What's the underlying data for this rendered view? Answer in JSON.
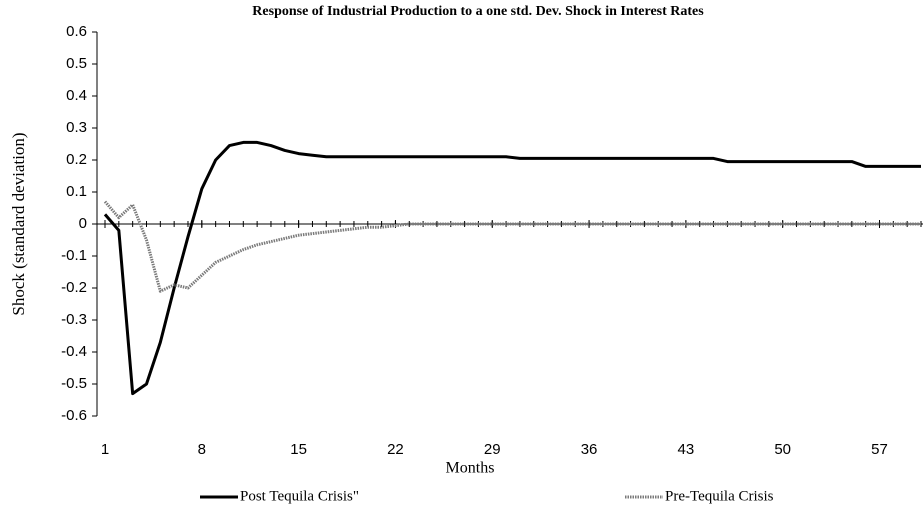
{
  "chart_data": {
    "type": "line",
    "title": "Response of Industrial Production to a one std. Dev. Shock in Interest Rates",
    "x_label": "Months",
    "y_label": "Shock (standard deviation)",
    "x": [
      1,
      2,
      3,
      4,
      5,
      6,
      7,
      8,
      9,
      10,
      11,
      12,
      13,
      14,
      15,
      16,
      17,
      18,
      19,
      20,
      21,
      22,
      23,
      24,
      25,
      26,
      27,
      28,
      29,
      30,
      31,
      32,
      33,
      34,
      35,
      36,
      37,
      38,
      39,
      40,
      41,
      42,
      43,
      44,
      45,
      46,
      47,
      48,
      49,
      50,
      51,
      52,
      53,
      54,
      55,
      56,
      57,
      58,
      59,
      60
    ],
    "xlim": [
      1,
      60
    ],
    "xticks": [
      1,
      8,
      15,
      22,
      29,
      36,
      43,
      50,
      57
    ],
    "ylim": [
      -0.6,
      0.6
    ],
    "yticks": [
      -0.6,
      -0.5,
      -0.4,
      -0.3,
      -0.2,
      -0.1,
      0,
      0.1,
      0.2,
      0.3,
      0.4,
      0.5,
      0.6
    ],
    "legend": "bottom",
    "series": [
      {
        "name": "Post Tequila Crisis\"",
        "color": "#000000",
        "values": [
          0.03,
          -0.02,
          -0.53,
          -0.5,
          -0.37,
          -0.2,
          -0.04,
          0.11,
          0.2,
          0.245,
          0.255,
          0.255,
          0.245,
          0.23,
          0.22,
          0.215,
          0.21,
          0.21,
          0.21,
          0.21,
          0.21,
          0.21,
          0.21,
          0.21,
          0.21,
          0.21,
          0.21,
          0.21,
          0.21,
          0.21,
          0.205,
          0.205,
          0.205,
          0.205,
          0.205,
          0.205,
          0.205,
          0.205,
          0.205,
          0.205,
          0.205,
          0.205,
          0.205,
          0.205,
          0.205,
          0.195,
          0.195,
          0.195,
          0.195,
          0.195,
          0.195,
          0.195,
          0.195,
          0.195,
          0.195,
          0.18,
          0.18,
          0.18,
          0.18,
          0.18
        ]
      },
      {
        "name": "Pre-Tequila Crisis",
        "color": "#7a7a7a",
        "values": [
          0.07,
          0.02,
          0.06,
          -0.05,
          -0.21,
          -0.19,
          -0.2,
          -0.16,
          -0.12,
          -0.1,
          -0.08,
          -0.065,
          -0.055,
          -0.045,
          -0.035,
          -0.03,
          -0.025,
          -0.02,
          -0.015,
          -0.01,
          -0.01,
          -0.005,
          0,
          0,
          0,
          0,
          0,
          0,
          0,
          0,
          0,
          0,
          0,
          0,
          0,
          0,
          0,
          0,
          0,
          0,
          0,
          0,
          0,
          0,
          0,
          0,
          0,
          0,
          0,
          0,
          0,
          0,
          0,
          0,
          0,
          0,
          0,
          0,
          0,
          0
        ]
      }
    ]
  }
}
